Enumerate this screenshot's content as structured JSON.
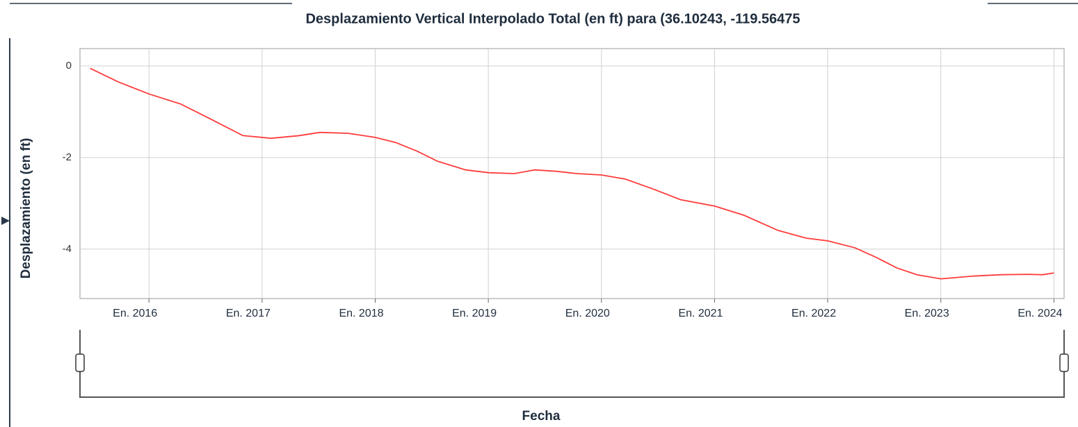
{
  "chart_data": {
    "type": "line",
    "title": "Desplazamiento Vertical Interpolado Total (en ft) para (36.10243, -119.56475",
    "y_label": "Desplazamiento (en ft)",
    "x_label": "Fecha",
    "xlim": [
      2015.39,
      2024.09
    ],
    "xticks": [
      {
        "value": 2016,
        "label": "En. 2016"
      },
      {
        "value": 2017,
        "label": "En. 2017"
      },
      {
        "value": 2018,
        "label": "En. 2018"
      },
      {
        "value": 2019,
        "label": "En. 2019"
      },
      {
        "value": 2020,
        "label": "En. 2020"
      },
      {
        "value": 2021,
        "label": "En. 2021"
      },
      {
        "value": 2022,
        "label": "En. 2022"
      },
      {
        "value": 2023,
        "label": "En. 2023"
      },
      {
        "value": 2024,
        "label": "En. 2024"
      }
    ],
    "ylim": [
      -5.08,
      0.38
    ],
    "yticks": [
      0,
      -2,
      -4
    ],
    "grid": true,
    "x": [
      2015.48,
      2015.73,
      2016.0,
      2016.28,
      2016.53,
      2016.83,
      2017.08,
      2017.33,
      2017.51,
      2017.76,
      2018.0,
      2018.18,
      2018.37,
      2018.55,
      2018.8,
      2019.0,
      2019.23,
      2019.41,
      2019.6,
      2019.78,
      2020.0,
      2020.21,
      2020.45,
      2020.7,
      2021.0,
      2021.26,
      2021.56,
      2021.81,
      2022.0,
      2022.24,
      2022.42,
      2022.61,
      2022.79,
      2023.0,
      2023.28,
      2023.53,
      2023.77,
      2023.9,
      2024.0
    ],
    "series": [
      {
        "color": "#ff3b3b",
        "values": [
          -0.05,
          -0.35,
          -0.61,
          -0.83,
          -1.14,
          -1.52,
          -1.58,
          -1.52,
          -1.45,
          -1.47,
          -1.56,
          -1.67,
          -1.86,
          -2.08,
          -2.27,
          -2.33,
          -2.35,
          -2.27,
          -2.3,
          -2.35,
          -2.38,
          -2.47,
          -2.68,
          -2.92,
          -3.06,
          -3.26,
          -3.59,
          -3.76,
          -3.82,
          -3.97,
          -4.17,
          -4.41,
          -4.56,
          -4.65,
          -4.59,
          -4.56,
          -4.55,
          -4.56,
          -4.52
        ]
      }
    ]
  }
}
